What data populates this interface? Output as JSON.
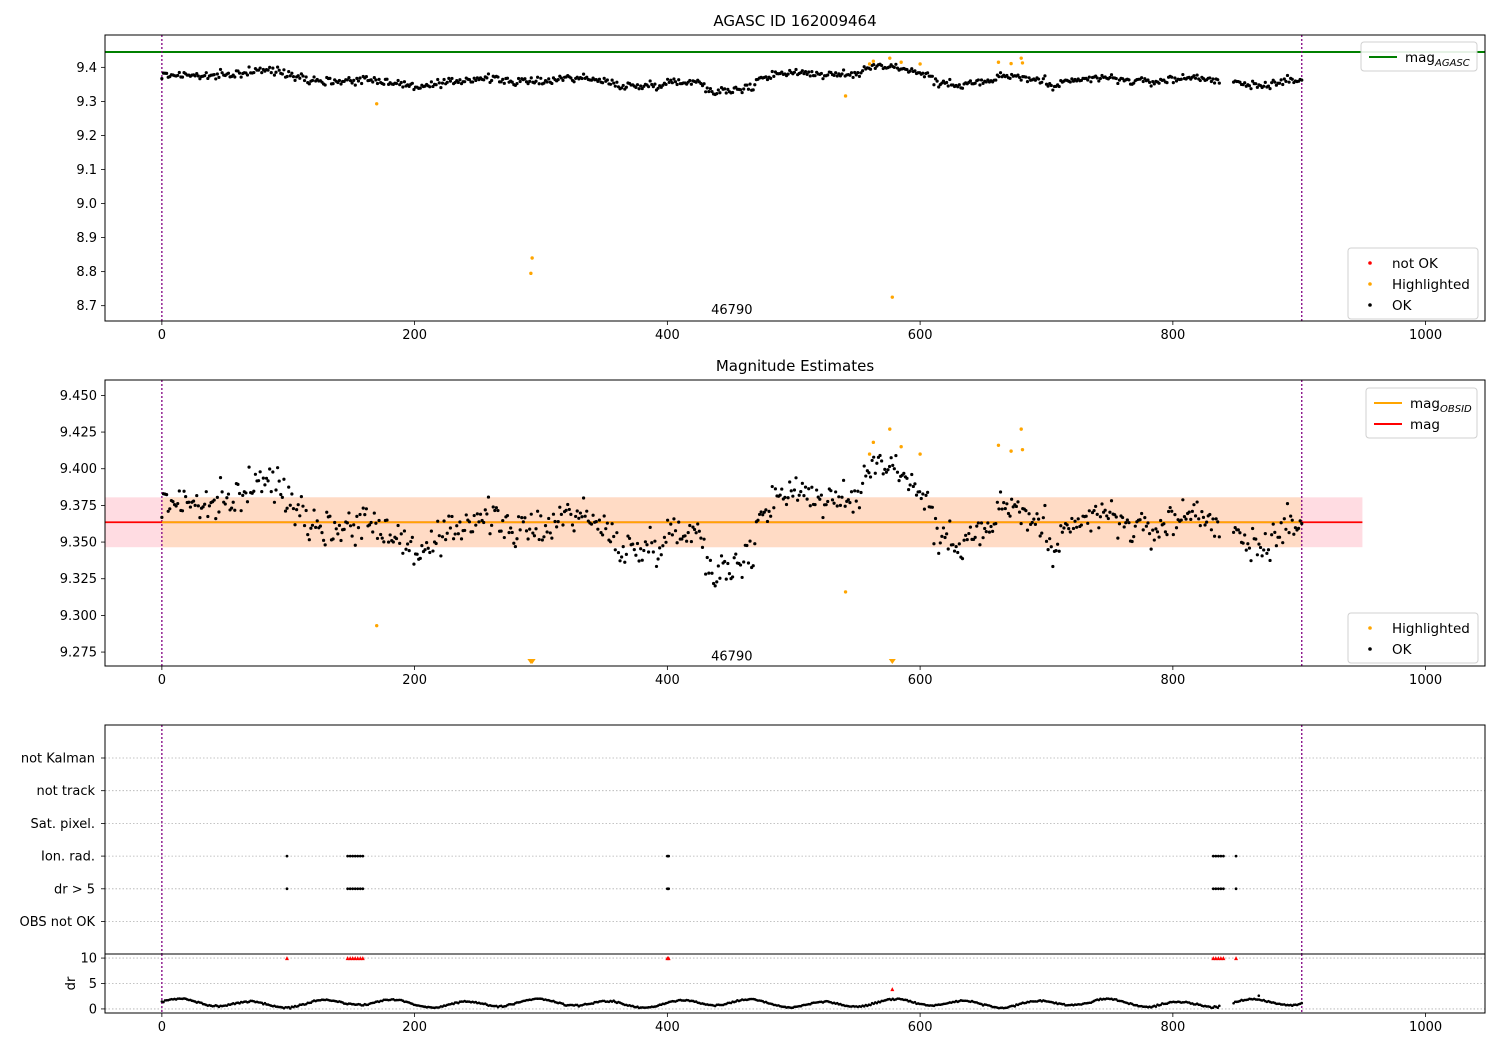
{
  "chart_data": [
    {
      "type": "scatter",
      "title": "AGASC ID 162009464",
      "xlim": [
        -45,
        1047
      ],
      "ylim": [
        8.655,
        9.495
      ],
      "xticks": [
        0,
        200,
        400,
        600,
        800,
        1000
      ],
      "yticks": [
        8.7,
        8.8,
        8.9,
        9.0,
        9.1,
        9.2,
        9.3,
        9.4
      ],
      "vlines": [
        0,
        902
      ],
      "vline_color": "#800080",
      "hline": {
        "name": "mag_AGASC",
        "value": 9.445,
        "color": "#008000"
      },
      "annotation": {
        "text": "46790",
        "x": 451,
        "y": 8.69
      },
      "series": [
        {
          "name": "not OK",
          "color": "#ff0000",
          "points": []
        },
        {
          "name": "Highlighted",
          "color": "#ffa500",
          "points": [
            [
              170,
              9.293
            ],
            [
              292,
              8.795
            ],
            [
              293,
              8.84
            ],
            [
              541,
              9.316
            ],
            [
              560,
              9.41
            ],
            [
              563,
              9.418
            ],
            [
              576,
              9.427
            ],
            [
              578,
              8.725
            ],
            [
              585,
              9.415
            ],
            [
              600,
              9.41
            ],
            [
              662,
              9.415
            ],
            [
              672,
              9.411
            ],
            [
              680,
              9.427
            ],
            [
              681,
              9.413
            ]
          ]
        },
        {
          "name": "OK",
          "color": "#000000",
          "generated": {
            "x_start": 0,
            "x_end": 902,
            "count": 720,
            "gaps": [
              [
                838,
                848
              ]
            ]
          }
        }
      ],
      "legends": [
        {
          "items": [
            {
              "label": "mag",
              "sub": "AGASC",
              "kind": "line",
              "color": "#008000"
            }
          ]
        },
        {
          "items": [
            {
              "label": "not OK",
              "kind": "dot",
              "color": "#ff0000"
            },
            {
              "label": "Highlighted",
              "kind": "dot",
              "color": "#ffa500"
            },
            {
              "label": "OK",
              "kind": "dot",
              "color": "#000000"
            }
          ]
        }
      ]
    },
    {
      "type": "scatter",
      "title": "Magnitude Estimates",
      "xlim": [
        -45,
        1047
      ],
      "ylim": [
        9.2655,
        9.4605
      ],
      "xticks": [
        0,
        200,
        400,
        600,
        800,
        1000
      ],
      "yticks": [
        9.275,
        9.3,
        9.325,
        9.35,
        9.375,
        9.4,
        9.425,
        9.45
      ],
      "ytick_labels": [
        "9.275",
        "9.300",
        "9.325",
        "9.350",
        "9.375",
        "9.400",
        "9.425",
        "9.450"
      ],
      "vlines": [
        0,
        902
      ],
      "vline_color": "#800080",
      "band": {
        "x_range": [
          -45,
          950
        ],
        "y_range": [
          9.3465,
          9.3805
        ],
        "color": "#ffc0cb"
      },
      "inner_band": {
        "x_range": [
          0,
          902
        ],
        "y_range": [
          9.3465,
          9.3805
        ],
        "color": "#ffdab9"
      },
      "hlines": [
        {
          "name": "mag",
          "value": 9.3635,
          "color": "#ff0000",
          "x_range": [
            -45,
            950
          ]
        },
        {
          "name": "mag_OBSID",
          "value": 9.3635,
          "color": "#ffa500",
          "x_range": [
            0,
            902
          ]
        }
      ],
      "annotation": {
        "text": "46790",
        "x": 451,
        "y": 9.2728
      },
      "triangles": [
        [
          292,
          9.268
        ],
        [
          293,
          9.268
        ],
        [
          578,
          9.268
        ]
      ],
      "series": [
        {
          "name": "Highlighted",
          "color": "#ffa500",
          "points": [
            [
              170,
              9.293
            ],
            [
              541,
              9.316
            ],
            [
              560,
              9.41
            ],
            [
              563,
              9.418
            ],
            [
              576,
              9.427
            ],
            [
              585,
              9.415
            ],
            [
              600,
              9.41
            ],
            [
              662,
              9.416
            ],
            [
              672,
              9.412
            ],
            [
              680,
              9.427
            ],
            [
              681,
              9.413
            ]
          ]
        },
        {
          "name": "OK",
          "color": "#000000",
          "generated": {
            "x_start": 0,
            "x_end": 902,
            "count": 720,
            "gaps": [
              [
                838,
                848
              ]
            ]
          }
        }
      ],
      "legends": [
        {
          "items": [
            {
              "label": "mag",
              "sub": "OBSID",
              "kind": "line",
              "color": "#ffa500"
            },
            {
              "label": "mag",
              "kind": "line",
              "color": "#ff0000"
            }
          ]
        },
        {
          "items": [
            {
              "label": "Highlighted",
              "kind": "dot",
              "color": "#ffa500"
            },
            {
              "label": "OK",
              "kind": "dot",
              "color": "#000000"
            }
          ]
        }
      ]
    },
    {
      "type": "scatter",
      "title": "",
      "xlim": [
        -45,
        1047
      ],
      "categories": [
        "not Kalman",
        "not track",
        "Sat. pixel.",
        "Ion. rad.",
        "dr > 5",
        "OBS not OK"
      ],
      "vlines": [
        0,
        902
      ],
      "vline_color": "#800080",
      "flag_points": {
        "Ion. rad.": [
          99,
          147,
          149,
          151,
          153,
          155,
          157,
          159,
          400,
          401,
          832,
          834,
          836,
          838,
          840,
          850
        ],
        "dr > 5": [
          99,
          147,
          149,
          151,
          153,
          155,
          157,
          159,
          400,
          401,
          832,
          834,
          836,
          838,
          840,
          850
        ]
      }
    },
    {
      "type": "scatter",
      "title": "",
      "xlim": [
        -45,
        1047
      ],
      "ylim": [
        -0.8,
        10.8
      ],
      "yticks": [
        0,
        5,
        10
      ],
      "ylabel": "dr",
      "vlines": [
        0,
        902
      ],
      "vline_color": "#800080",
      "red_points": [
        [
          99,
          10
        ],
        [
          147,
          10
        ],
        [
          149,
          10
        ],
        [
          151,
          10
        ],
        [
          153,
          10
        ],
        [
          155,
          10
        ],
        [
          157,
          10
        ],
        [
          159,
          10
        ],
        [
          400,
          10
        ],
        [
          401,
          10
        ],
        [
          832,
          10
        ],
        [
          834,
          10
        ],
        [
          836,
          10
        ],
        [
          838,
          10
        ],
        [
          840,
          10
        ],
        [
          850,
          10
        ],
        [
          578,
          3.9
        ]
      ],
      "black_series": {
        "generated": {
          "x_start": 0,
          "x_end": 902,
          "count": 720,
          "gaps": [
            [
              838,
              848
            ]
          ]
        }
      },
      "extra_black": [
        [
          868,
          2.6
        ]
      ],
      "xticks": [
        0,
        200,
        400,
        600,
        800,
        1000
      ]
    }
  ]
}
